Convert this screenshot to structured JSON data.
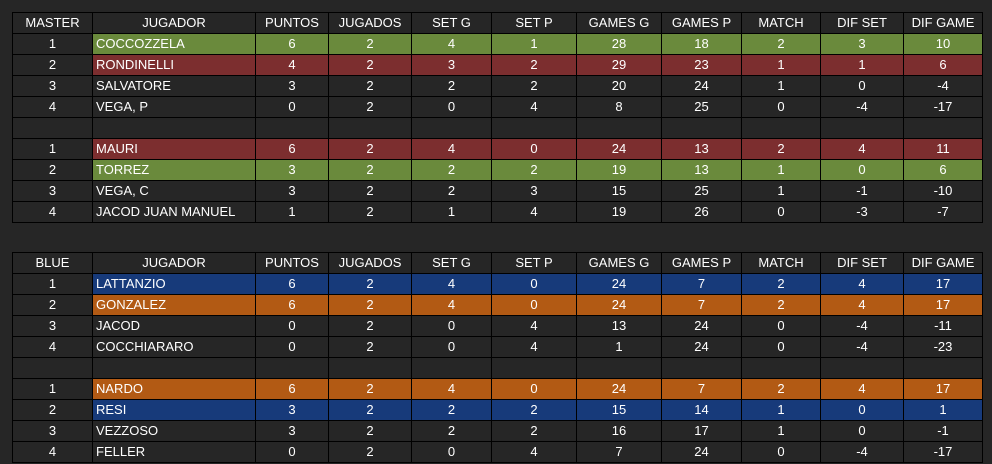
{
  "tables": [
    {
      "title": "MASTER",
      "headers": [
        "JUGADOR",
        "PUNTOS",
        "JUGADOS",
        "SET G",
        "SET P",
        "GAMES G",
        "GAMES P",
        "MATCH",
        "DIF SET",
        "DIF GAME"
      ],
      "groups": [
        [
          {
            "pos": "1",
            "name": "COCCOZZELA",
            "hl": "green",
            "vals": [
              "6",
              "2",
              "4",
              "1",
              "28",
              "18",
              "2",
              "3",
              "10"
            ]
          },
          {
            "pos": "2",
            "name": "RONDINELLI",
            "hl": "red",
            "vals": [
              "4",
              "2",
              "3",
              "2",
              "29",
              "23",
              "1",
              "1",
              "6"
            ]
          },
          {
            "pos": "3",
            "name": "SALVATORE",
            "hl": "",
            "vals": [
              "3",
              "2",
              "2",
              "2",
              "20",
              "24",
              "1",
              "0",
              "-4"
            ]
          },
          {
            "pos": "4",
            "name": "VEGA, P",
            "hl": "",
            "vals": [
              "0",
              "2",
              "0",
              "4",
              "8",
              "25",
              "0",
              "-4",
              "-17"
            ]
          }
        ],
        [
          {
            "pos": "1",
            "name": "MAURI",
            "hl": "red",
            "vals": [
              "6",
              "2",
              "4",
              "0",
              "24",
              "13",
              "2",
              "4",
              "11"
            ]
          },
          {
            "pos": "2",
            "name": "TORREZ",
            "hl": "green",
            "vals": [
              "3",
              "2",
              "2",
              "2",
              "19",
              "13",
              "1",
              "0",
              "6"
            ]
          },
          {
            "pos": "3",
            "name": "VEGA, C",
            "hl": "",
            "vals": [
              "3",
              "2",
              "2",
              "3",
              "15",
              "25",
              "1",
              "-1",
              "-10"
            ]
          },
          {
            "pos": "4",
            "name": "JACOD JUAN MANUEL",
            "hl": "",
            "vals": [
              "1",
              "2",
              "1",
              "4",
              "19",
              "26",
              "0",
              "-3",
              "-7"
            ]
          }
        ]
      ]
    },
    {
      "title": "BLUE",
      "headers": [
        "JUGADOR",
        "PUNTOS",
        "JUGADOS",
        "SET G",
        "SET P",
        "GAMES G",
        "GAMES P",
        "MATCH",
        "DIF SET",
        "DIF GAME"
      ],
      "groups": [
        [
          {
            "pos": "1",
            "name": "LATTANZIO",
            "hl": "blue",
            "vals": [
              "6",
              "2",
              "4",
              "0",
              "24",
              "7",
              "2",
              "4",
              "17"
            ]
          },
          {
            "pos": "2",
            "name": "GONZALEZ",
            "hl": "orange",
            "vals": [
              "6",
              "2",
              "4",
              "0",
              "24",
              "7",
              "2",
              "4",
              "17"
            ]
          },
          {
            "pos": "3",
            "name": "JACOD",
            "hl": "",
            "vals": [
              "0",
              "2",
              "0",
              "4",
              "13",
              "24",
              "0",
              "-4",
              "-11"
            ]
          },
          {
            "pos": "4",
            "name": "COCCHIARARO",
            "hl": "",
            "vals": [
              "0",
              "2",
              "0",
              "4",
              "1",
              "24",
              "0",
              "-4",
              "-23"
            ]
          }
        ],
        [
          {
            "pos": "1",
            "name": "NARDO",
            "hl": "orange",
            "vals": [
              "6",
              "2",
              "4",
              "0",
              "24",
              "7",
              "2",
              "4",
              "17"
            ]
          },
          {
            "pos": "2",
            "name": "RESI",
            "hl": "blue",
            "vals": [
              "3",
              "2",
              "2",
              "2",
              "15",
              "14",
              "1",
              "0",
              "1"
            ]
          },
          {
            "pos": "3",
            "name": "VEZZOSO",
            "hl": "",
            "vals": [
              "3",
              "2",
              "2",
              "2",
              "16",
              "17",
              "1",
              "0",
              "-1"
            ]
          },
          {
            "pos": "4",
            "name": "FELLER",
            "hl": "",
            "vals": [
              "0",
              "2",
              "0",
              "4",
              "7",
              "24",
              "0",
              "-4",
              "-17"
            ]
          }
        ]
      ]
    }
  ],
  "colors": {
    "background": "#262626",
    "green": "#6a8a3c",
    "red": "#7c2e2f",
    "blue": "#173a7a",
    "orange": "#b25a14",
    "grid": "#000000"
  }
}
